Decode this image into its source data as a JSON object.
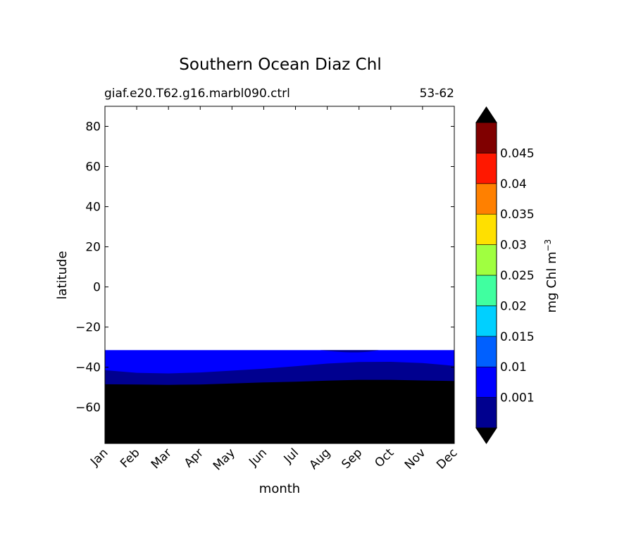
{
  "chart_data": {
    "type": "contour",
    "title": "Southern Ocean Diaz Chl",
    "subtitle_left": "giaf.e20.T62.g16.marbl090.ctrl",
    "subtitle_right": "53-62",
    "xlabel": "month",
    "ylabel": "latitude",
    "x_ticks": [
      "Jan",
      "Feb",
      "Mar",
      "Apr",
      "May",
      "Jun",
      "Jul",
      "Aug",
      "Sep",
      "Oct",
      "Nov",
      "Dec"
    ],
    "ylim": [
      -78,
      90
    ],
    "y_ticks": [
      80,
      60,
      40,
      20,
      0,
      -20,
      -40,
      -60
    ],
    "y_tick_labels": [
      "80",
      "60",
      "40",
      "20",
      "0",
      "−20",
      "−40",
      "−60"
    ],
    "data_northern_edge_lat": -31.5,
    "bands": [
      {
        "level": "< 0.001",
        "color": "#000000",
        "northern_boundary_lat": [
          -48.5,
          -48.6,
          -48.8,
          -48.6,
          -48.1,
          -47.6,
          -47.2,
          -46.7,
          -46.3,
          -46.3,
          -46.6,
          -46.9
        ]
      },
      {
        "level": "0.001-0.005",
        "color": "#00008f",
        "northern_boundary_lat": [
          -41.5,
          -42.8,
          -43.1,
          -42.6,
          -41.7,
          -40.7,
          -39.5,
          -38.2,
          -37.4,
          -37.3,
          -37.9,
          -39.3
        ]
      },
      {
        "level": "0.005-0.01",
        "color": "#0000ff",
        "northern_boundary_lat": [
          -31.5,
          -31.5,
          -31.5,
          -31.5,
          -31.5,
          -31.5,
          -31.5,
          -31.5,
          -31.5,
          -31.5,
          -31.5,
          -31.5
        ]
      }
    ],
    "patch": {
      "month": "Sep",
      "lat": -33,
      "color": "#00008f"
    },
    "colorbar": {
      "label": "mg Chl m",
      "label_exponent": "−3",
      "extend": "both",
      "colors": [
        "#00008f",
        "#0000ff",
        "#0060ff",
        "#00d0ff",
        "#40ffa0",
        "#a0ff40",
        "#ffe000",
        "#ff8000",
        "#ff1800",
        "#800000"
      ],
      "under_color": "#000000",
      "over_color": "#000000",
      "tick_labels": [
        "0.001",
        "0.01",
        "0.015",
        "0.02",
        "0.025",
        "0.03",
        "0.035",
        "0.04",
        "0.045"
      ]
    }
  }
}
